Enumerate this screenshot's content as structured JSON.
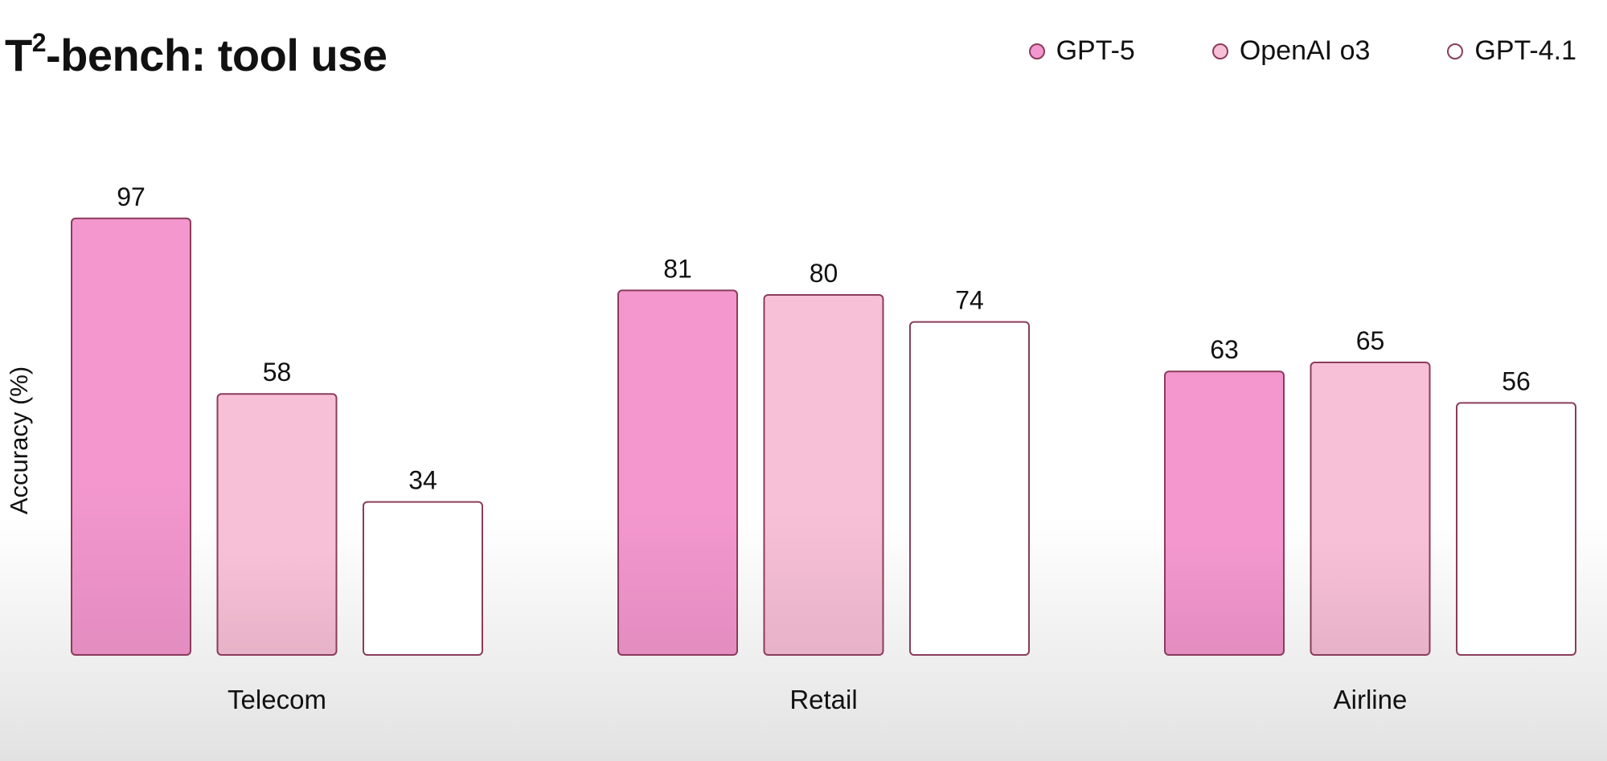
{
  "chart_data": {
    "type": "bar",
    "title_main": "T",
    "title_sup": "2",
    "title_rest": "-bench: tool use",
    "ylabel": "Accuracy (%)",
    "xlabel": "",
    "categories": [
      "Telecom",
      "Retail",
      "Airline"
    ],
    "series": [
      {
        "name": "GPT-5",
        "values": [
          97,
          81,
          63
        ],
        "color": "#f497cf",
        "border": "#8a3c5a"
      },
      {
        "name": "OpenAI o3",
        "values": [
          58,
          80,
          65
        ],
        "color": "#f8c0d6",
        "border": "#8a3c5a"
      },
      {
        "name": "GPT-4.1",
        "values": [
          34,
          74,
          56
        ],
        "color": "#ffffff",
        "border": "#8a3c5a"
      }
    ],
    "ylim": [
      0,
      100
    ],
    "grid": false,
    "legend_position": "top-right"
  }
}
